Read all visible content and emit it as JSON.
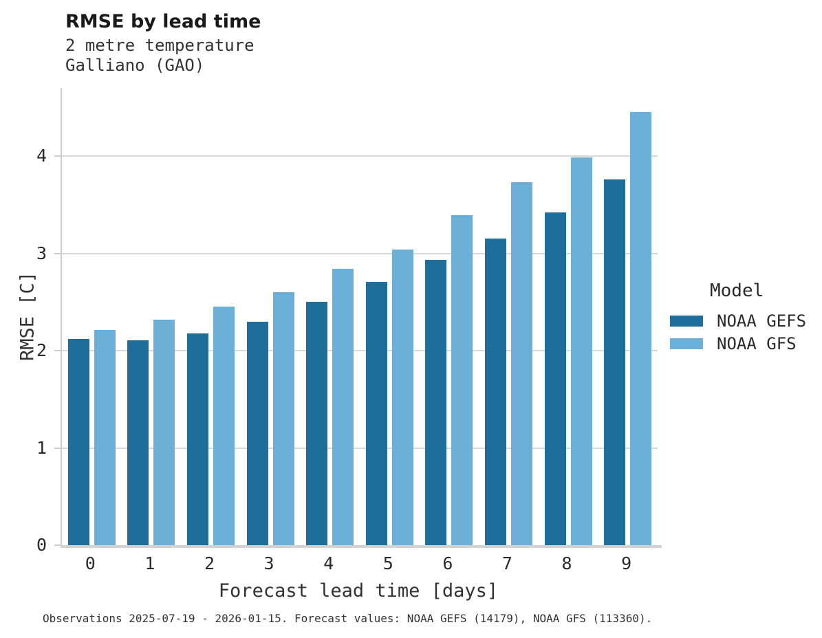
{
  "title": "RMSE by lead time",
  "subtitle": {
    "line1": "2 metre temperature",
    "line2": "Galliano (GAO)"
  },
  "footer": "Observations 2025-07-19 - 2026-01-15. Forecast values: NOAA GEFS (14179), NOAA GFS (113360).",
  "colors": {
    "gefs_dark_blue": "#1e6e9c",
    "gfs_light_blue": "#6cb0d8",
    "gridline": "#d9d9d9",
    "axis_spine": "#cccccc",
    "text": "#2b2b2b"
  },
  "legend": {
    "title": "Model",
    "entries": [
      {
        "label": "NOAA GEFS",
        "color": "#1e6e9c"
      },
      {
        "label": "NOAA GFS",
        "color": "#6cb0d8"
      }
    ]
  },
  "chart_data": {
    "type": "bar",
    "title": "RMSE by lead time",
    "subtitle": [
      "2 metre temperature",
      "Galliano (GAO)"
    ],
    "categories": [
      "0",
      "1",
      "2",
      "3",
      "4",
      "5",
      "6",
      "7",
      "8",
      "9"
    ],
    "series": [
      {
        "name": "NOAA GEFS",
        "color": "#1e6e9c",
        "values": [
          2.12,
          2.11,
          2.18,
          2.3,
          2.5,
          2.71,
          2.93,
          3.15,
          3.42,
          3.76
        ]
      },
      {
        "name": "NOAA GFS",
        "color": "#6cb0d8",
        "values": [
          2.21,
          2.32,
          2.45,
          2.6,
          2.84,
          3.04,
          3.39,
          3.73,
          3.99,
          4.45
        ]
      }
    ],
    "xlabel": "Forecast lead time [days]",
    "ylabel": "RMSE [C]",
    "ylim": [
      0,
      4.7
    ],
    "yticks": [
      0,
      1,
      2,
      3,
      4
    ],
    "grid": true,
    "legend_position": "right",
    "legend_title": "Model"
  }
}
